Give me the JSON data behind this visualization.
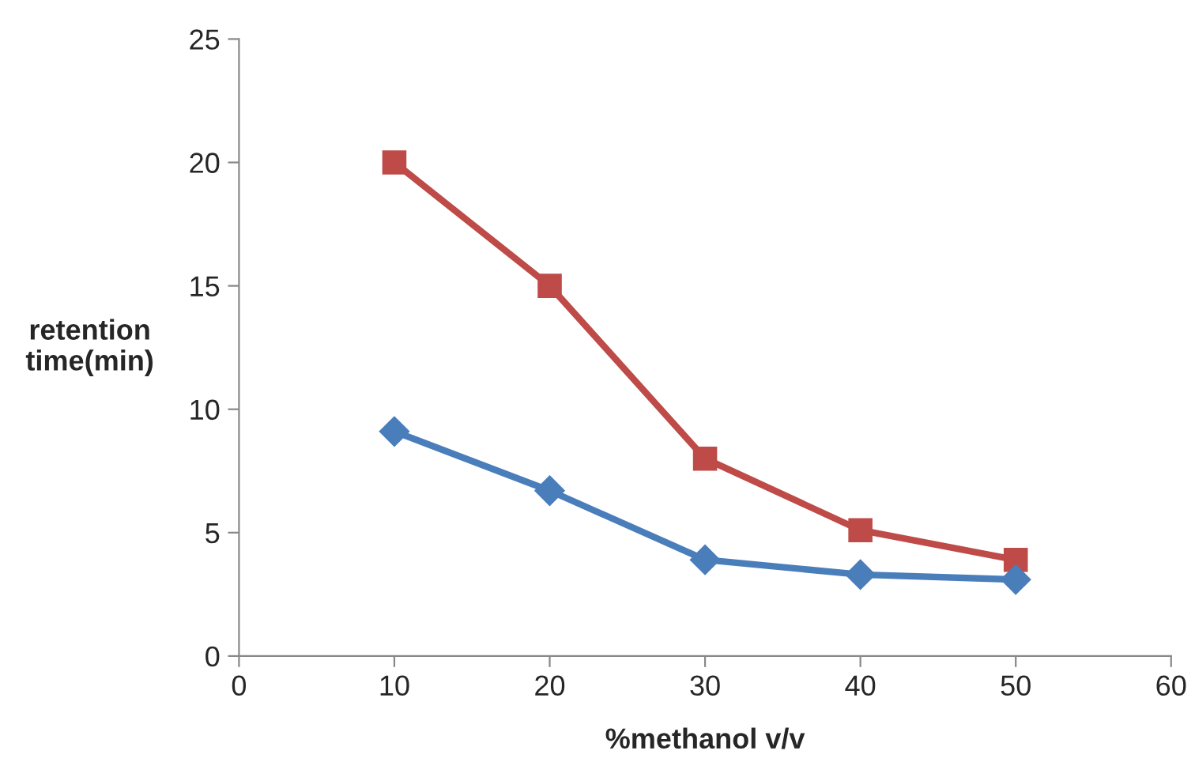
{
  "chart_data": {
    "type": "line",
    "xlabel": "%methanol v/v",
    "ylabel": "retention\ntime(min)",
    "xlim": [
      0,
      60
    ],
    "xticks": [
      0,
      10,
      20,
      30,
      40,
      50,
      60
    ],
    "ylim": [
      0,
      25
    ],
    "yticks": [
      0,
      5,
      10,
      15,
      20,
      25
    ],
    "grid": false,
    "legend": false,
    "line_style": "solid",
    "series": [
      {
        "color": "#be4b48",
        "marker": "square",
        "x": [
          10,
          20,
          30,
          40,
          50
        ],
        "values": [
          20,
          15,
          8,
          5.1,
          3.9
        ]
      },
      {
        "color": "#4a7ebb",
        "marker": "diamond",
        "x": [
          10,
          20,
          30,
          40,
          50
        ],
        "values": [
          9.1,
          6.7,
          3.9,
          3.3,
          3.1
        ]
      }
    ]
  }
}
